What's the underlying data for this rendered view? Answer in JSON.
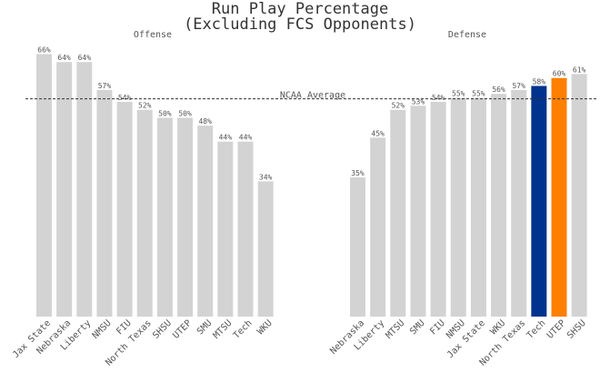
{
  "title_line1": "Run Play Percentage",
  "title_line2": "(Excluding FCS Opponents)",
  "reference_line": {
    "label": "NCAA Average",
    "value": 55
  },
  "colors": {
    "default_bar": "#d3d3d3",
    "highlight_tech": "#00338d",
    "highlight_utep": "#ff7f00",
    "text": "#555555",
    "title": "#333333"
  },
  "chart_data": [
    {
      "type": "bar",
      "title": "Offense",
      "ylim": [
        0,
        70
      ],
      "grid": false,
      "categories": [
        "Jax State",
        "Nebraska",
        "Liberty",
        "NMSU",
        "FIU",
        "North Texas",
        "SHSU",
        "UTEP",
        "SMU",
        "MTSU",
        "Tech",
        "WKU"
      ],
      "values": [
        66,
        64,
        64,
        57,
        54,
        52,
        50,
        50,
        48,
        44,
        44,
        34
      ],
      "data_labels": [
        "66%",
        "64%",
        "64%",
        "57%",
        "54%",
        "52%",
        "50%",
        "50%",
        "48%",
        "44%",
        "44%",
        "34%"
      ],
      "highlight": {}
    },
    {
      "type": "bar",
      "title": "Defense",
      "ylim": [
        0,
        70
      ],
      "grid": false,
      "categories": [
        "Nebraska",
        "Liberty",
        "MTSU",
        "SMU",
        "FIU",
        "NMSU",
        "Jax State",
        "WKU",
        "North Texas",
        "Tech",
        "UTEP",
        "SHSU"
      ],
      "values": [
        35,
        45,
        52,
        53,
        54,
        55,
        55,
        56,
        57,
        58,
        60,
        61
      ],
      "data_labels": [
        "35%",
        "45%",
        "52%",
        "53%",
        "54%",
        "55%",
        "55%",
        "56%",
        "57%",
        "58%",
        "60%",
        "61%"
      ],
      "highlight": {
        "Tech": "#00338d",
        "UTEP": "#ff7f00"
      }
    }
  ]
}
